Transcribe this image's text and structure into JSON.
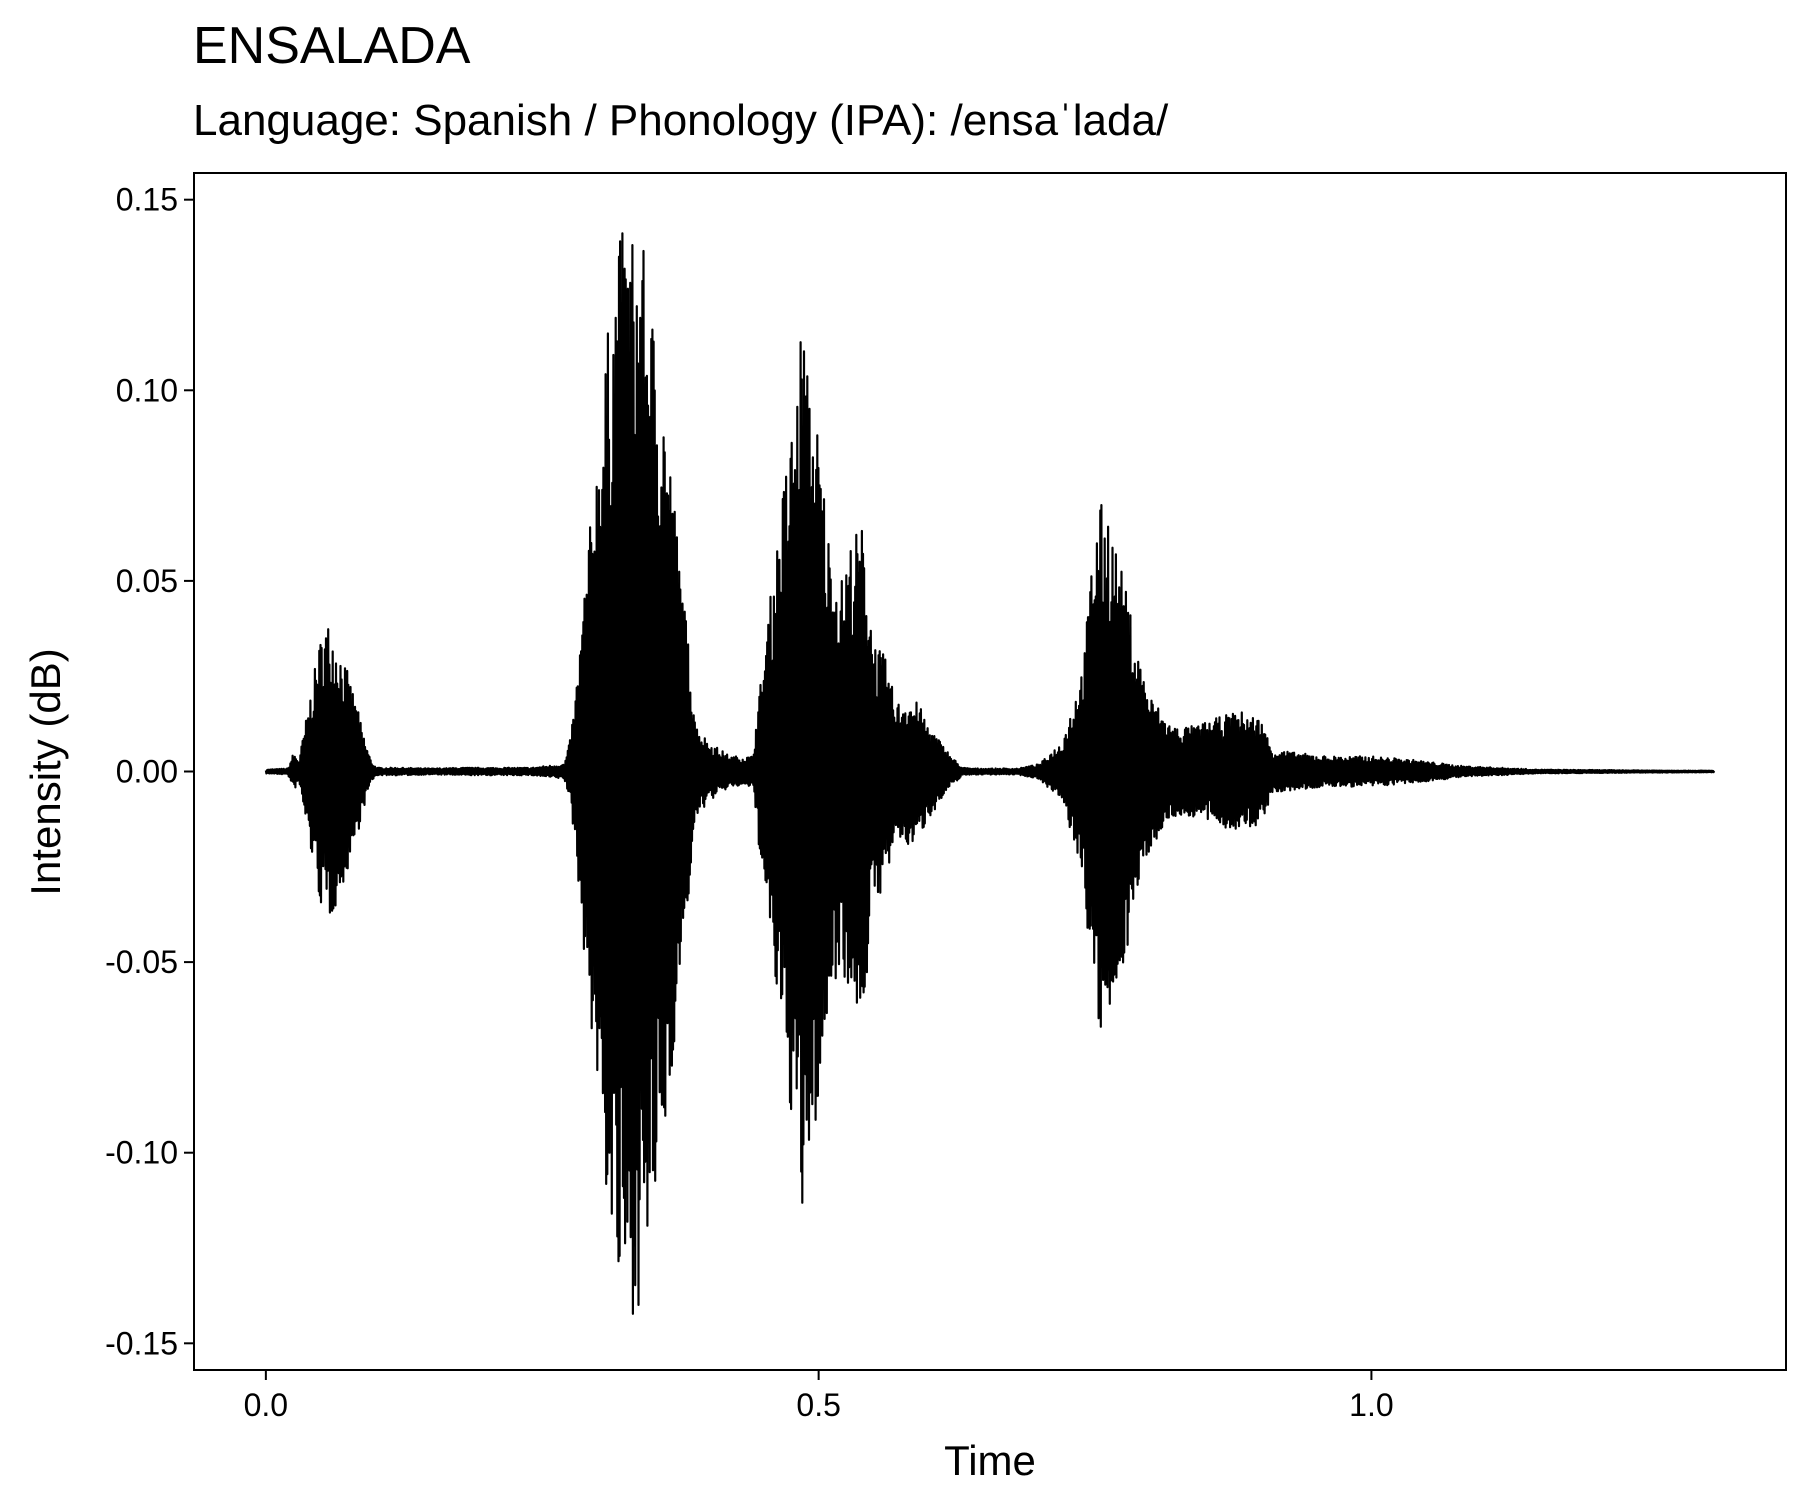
{
  "chart_data": {
    "type": "line",
    "title": "ENSALADA",
    "subtitle": "Language: Spanish / Phonology (IPA): /ensaˈlada/",
    "xlabel": "Time",
    "ylabel": "Intensity (dB)",
    "xlim": [
      -0.065,
      1.375
    ],
    "ylim": [
      -0.157,
      0.157
    ],
    "x_ticks": [
      0.0,
      0.5,
      1.0
    ],
    "x_tick_labels": [
      "0.0",
      "0.5",
      "1.0"
    ],
    "y_ticks": [
      0.15,
      0.1,
      0.05,
      0.0,
      -0.05,
      -0.1,
      -0.15
    ],
    "y_tick_labels": [
      "0.15",
      "0.10",
      "0.05",
      "0.00",
      "-0.05",
      "-0.10",
      "-0.15"
    ],
    "grid": false,
    "series": [
      {
        "color": "#000000",
        "envelope": {
          "t": [
            0.0,
            0.02,
            0.025,
            0.03,
            0.04,
            0.05,
            0.055,
            0.06,
            0.07,
            0.08,
            0.09,
            0.095,
            0.1,
            0.12,
            0.15,
            0.18,
            0.2,
            0.24,
            0.27,
            0.275,
            0.28,
            0.29,
            0.3,
            0.31,
            0.32,
            0.33,
            0.34,
            0.35,
            0.36,
            0.37,
            0.38,
            0.39,
            0.4,
            0.41,
            0.42,
            0.44,
            0.45,
            0.46,
            0.47,
            0.48,
            0.485,
            0.49,
            0.5,
            0.51,
            0.52,
            0.53,
            0.54,
            0.55,
            0.56,
            0.57,
            0.58,
            0.59,
            0.6,
            0.62,
            0.63,
            0.64,
            0.66,
            0.68,
            0.7,
            0.72,
            0.73,
            0.74,
            0.75,
            0.76,
            0.77,
            0.78,
            0.79,
            0.8,
            0.82,
            0.84,
            0.86,
            0.88,
            0.9,
            0.91,
            0.93,
            0.96,
            1.0,
            1.04,
            1.08,
            1.15,
            1.25,
            1.31
          ],
          "amp": [
            0.0005,
            0.0008,
            0.005,
            0.003,
            0.02,
            0.036,
            0.04,
            0.038,
            0.03,
            0.02,
            0.008,
            0.003,
            0.001,
            0.001,
            0.0008,
            0.001,
            0.001,
            0.001,
            0.002,
            0.008,
            0.02,
            0.055,
            0.085,
            0.118,
            0.142,
            0.143,
            0.14,
            0.12,
            0.1,
            0.07,
            0.04,
            0.012,
            0.008,
            0.006,
            0.004,
            0.004,
            0.03,
            0.055,
            0.08,
            0.1,
            0.123,
            0.105,
            0.09,
            0.06,
            0.05,
            0.062,
            0.065,
            0.035,
            0.03,
            0.018,
            0.02,
            0.018,
            0.012,
            0.004,
            0.001,
            0.0008,
            0.0008,
            0.0008,
            0.002,
            0.008,
            0.018,
            0.03,
            0.067,
            0.073,
            0.058,
            0.045,
            0.03,
            0.02,
            0.012,
            0.012,
            0.014,
            0.016,
            0.014,
            0.006,
            0.005,
            0.004,
            0.004,
            0.003,
            0.0015,
            0.0005,
            0.0003,
            0.0002
          ]
        }
      }
    ]
  }
}
